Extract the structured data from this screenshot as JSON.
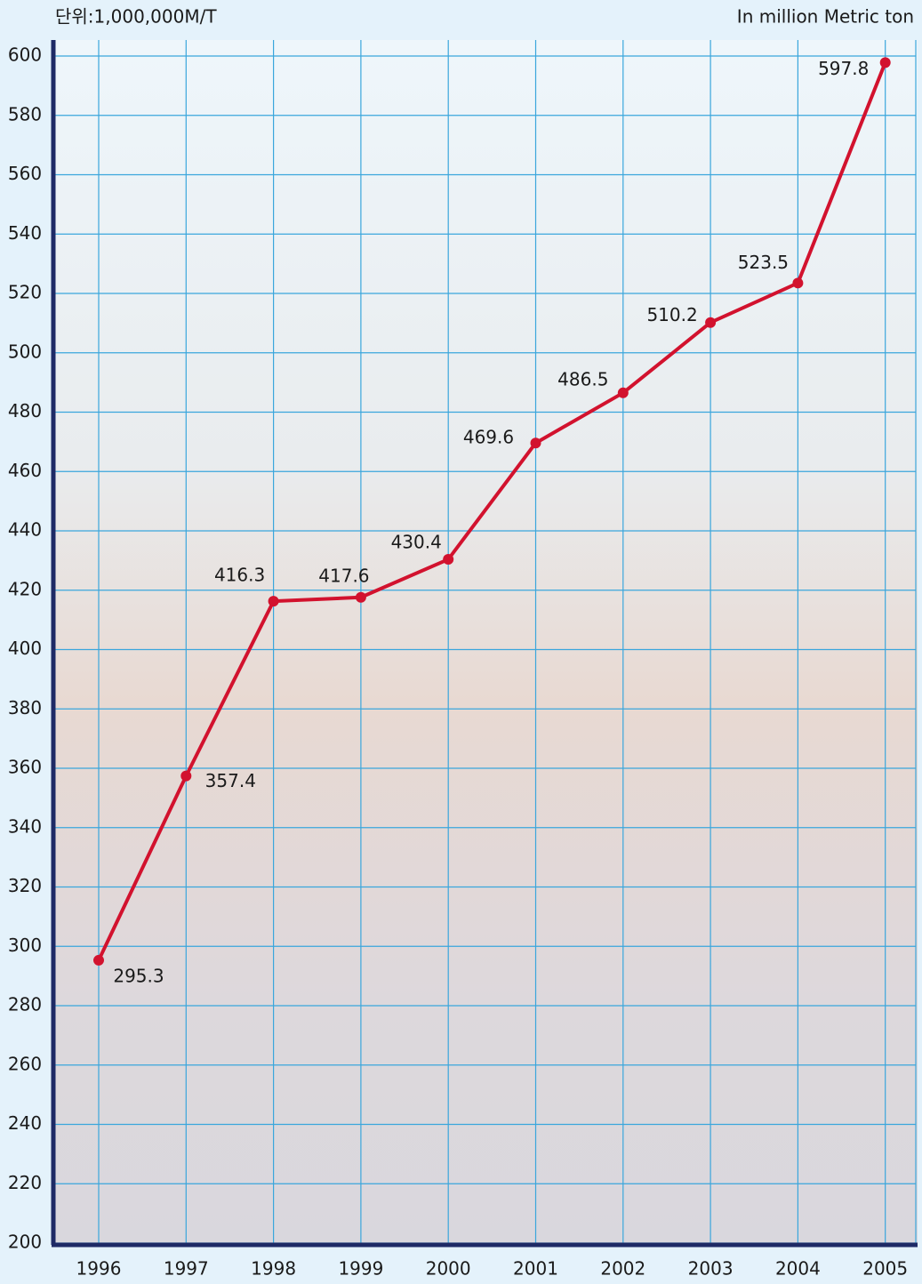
{
  "chart_data": {
    "type": "line",
    "unit_label": "단위:1,000,000M/T",
    "unit_label_en": "In million Metric ton",
    "categories": [
      "1996",
      "1997",
      "1998",
      "1999",
      "2000",
      "2001",
      "2002",
      "2003",
      "2004",
      "2005"
    ],
    "values": [
      295.3,
      357.4,
      416.3,
      417.6,
      430.4,
      469.6,
      486.5,
      510.2,
      523.5,
      597.8
    ],
    "color": "#d2122e",
    "ylim": [
      200,
      600
    ],
    "yticks": [
      200,
      220,
      240,
      260,
      280,
      300,
      320,
      340,
      360,
      380,
      400,
      420,
      440,
      460,
      480,
      500,
      520,
      540,
      560,
      580,
      600
    ],
    "grid": true
  }
}
